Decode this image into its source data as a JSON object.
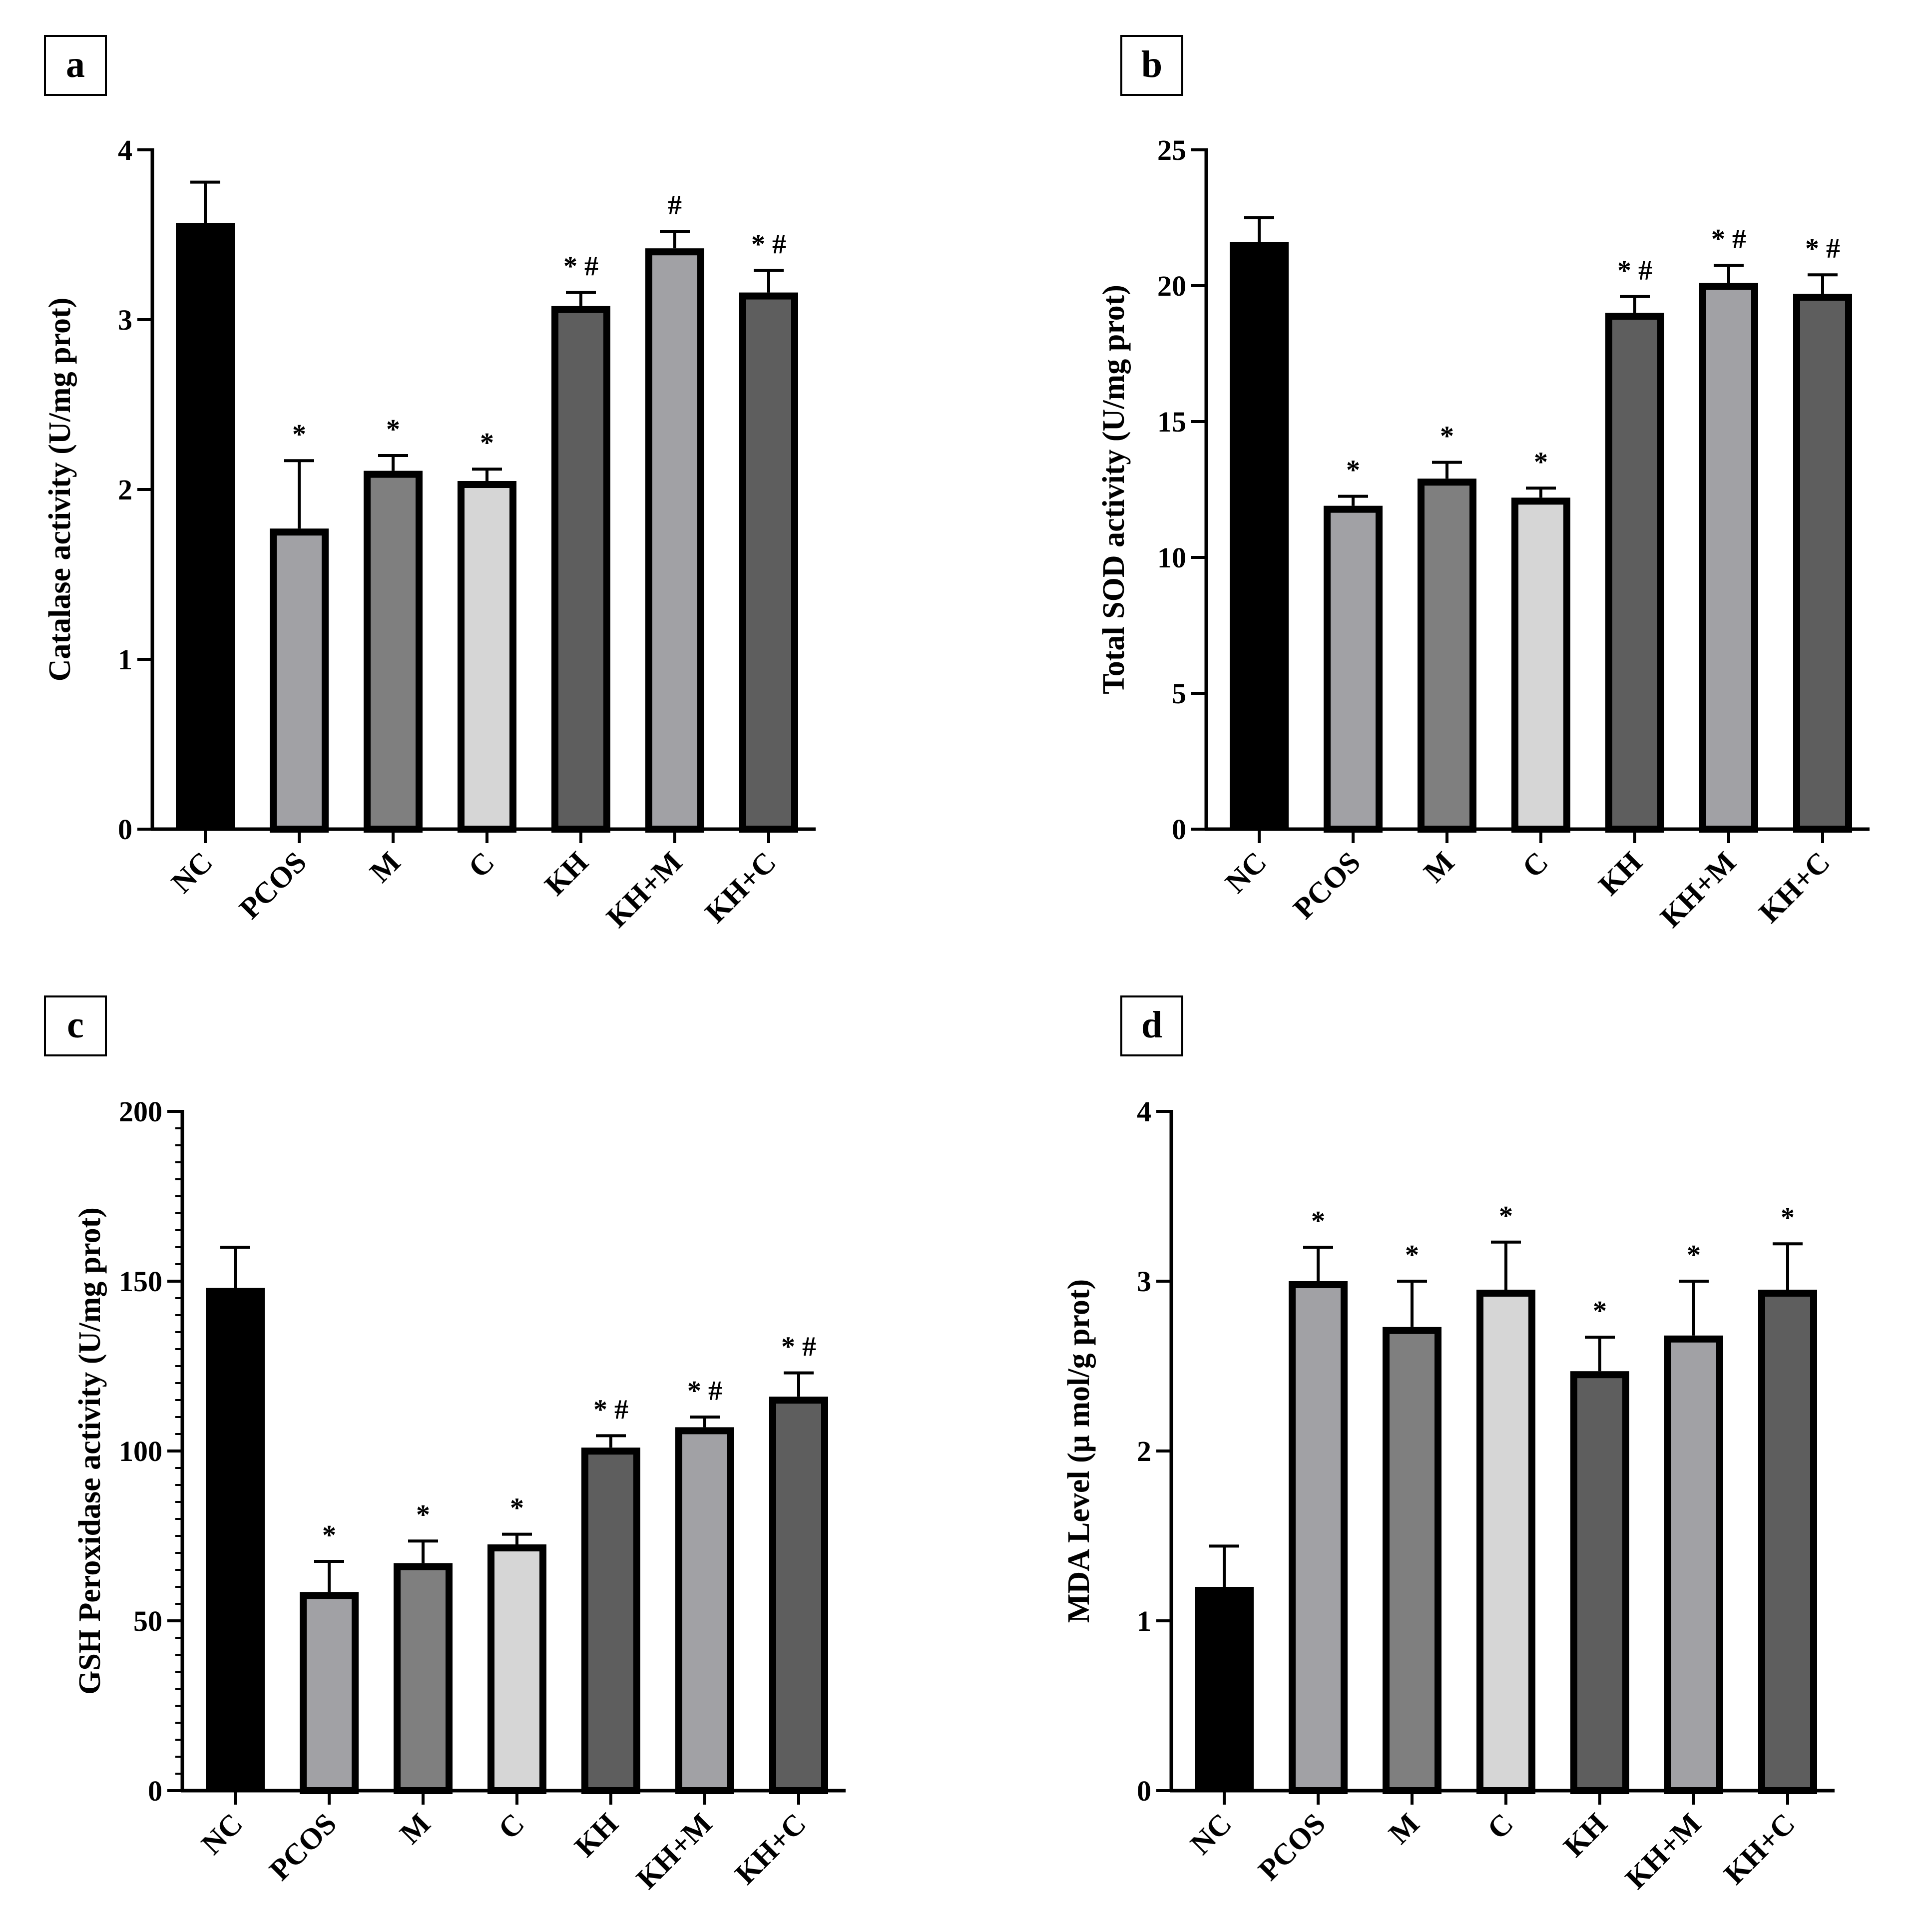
{
  "colors": {
    "NC": "#000000",
    "PCOS": "#a1a1a5",
    "M": "#7f7f7f",
    "C": "#d6d6d6",
    "KH": "#5e5e5e",
    "KH+M": "#a1a1a5",
    "KH+C": "#5e5e5e",
    "axis": "#000000"
  },
  "chart_data": [
    {
      "panel": "a",
      "type": "bar",
      "categories": [
        "NC",
        "PCOS",
        "M",
        "C",
        "KH",
        "KH+M",
        "KH+C"
      ],
      "values": [
        3.57,
        1.77,
        2.11,
        2.05,
        3.08,
        3.42,
        3.16
      ],
      "errors": [
        0.24,
        0.4,
        0.09,
        0.07,
        0.08,
        0.1,
        0.13
      ],
      "annotations": [
        "",
        "*",
        "*",
        "*",
        "* #",
        "#",
        "* #"
      ],
      "ylabel": "Catalase activity (U/mg prot)",
      "xlabel": "",
      "ylim": [
        0,
        4
      ],
      "yticks": [
        0,
        1,
        2,
        3,
        4
      ],
      "minor_ticks": false
    },
    {
      "panel": "b",
      "type": "bar",
      "categories": [
        "NC",
        "PCOS",
        "M",
        "C",
        "KH",
        "KH+M",
        "KH+C"
      ],
      "values": [
        21.6,
        11.9,
        12.9,
        12.2,
        19.0,
        20.1,
        19.7
      ],
      "errors": [
        0.9,
        0.35,
        0.6,
        0.35,
        0.6,
        0.65,
        0.7
      ],
      "annotations": [
        "",
        "*",
        "*",
        "*",
        "* #",
        "* #",
        "* #"
      ],
      "ylabel": "Total SOD activity (U/mg prot)",
      "xlabel": "",
      "ylim": [
        0,
        25
      ],
      "yticks": [
        0,
        5,
        10,
        15,
        20,
        25
      ],
      "minor_ticks": false
    },
    {
      "panel": "c",
      "type": "bar",
      "categories": [
        "NC",
        "PCOS",
        "M",
        "C",
        "KH",
        "KH+M",
        "KH+C"
      ],
      "values": [
        148,
        58.5,
        67,
        72.5,
        101,
        107,
        116
      ],
      "errors": [
        12,
        9,
        6.5,
        3,
        3.5,
        3,
        7
      ],
      "annotations": [
        "",
        "*",
        "*",
        "*",
        "* #",
        "* #",
        "* #"
      ],
      "ylabel": "GSH Peroxidase activity (U/mg prot)",
      "xlabel": "",
      "ylim": [
        0,
        200
      ],
      "yticks": [
        0,
        50,
        100,
        150,
        200
      ],
      "minor_ticks": true
    },
    {
      "panel": "d",
      "type": "bar",
      "categories": [
        "NC",
        "PCOS",
        "M",
        "C",
        "KH",
        "KH+M",
        "KH+C"
      ],
      "values": [
        1.2,
        3.0,
        2.73,
        2.95,
        2.47,
        2.68,
        2.95
      ],
      "errors": [
        0.24,
        0.2,
        0.27,
        0.28,
        0.2,
        0.32,
        0.27
      ],
      "annotations": [
        "",
        "*",
        "*",
        "*",
        "*",
        "*",
        "*"
      ],
      "ylabel": "MDA Level (μ mol/g prot)",
      "xlabel": "",
      "ylim": [
        0,
        4
      ],
      "yticks": [
        0,
        1,
        2,
        3,
        4
      ],
      "minor_ticks": false
    }
  ]
}
